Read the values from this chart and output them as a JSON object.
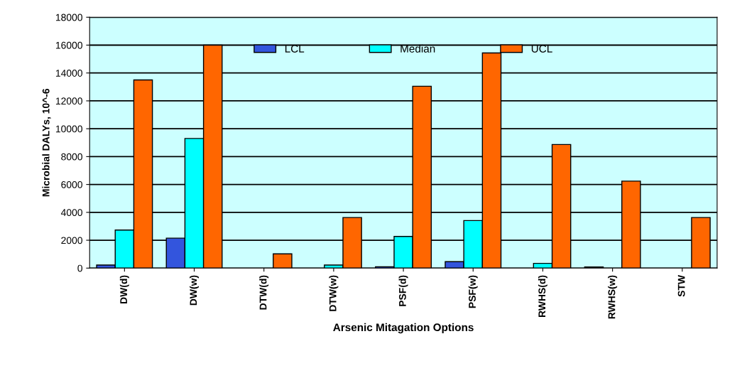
{
  "chart_data": {
    "type": "bar",
    "xlabel": "Arsenic Mitagation Options",
    "ylabel": "Microbial DALYs, 10^-6",
    "categories": [
      "DW(d)",
      "DW(w)",
      "DTW(d)",
      "DTW(w)",
      "PSF(d)",
      "PSF(w)",
      "RWHS(d)",
      "RWHS(w)",
      "STW"
    ],
    "series": [
      {
        "name": "LCL",
        "color": "#3355dd",
        "values": [
          220,
          2150,
          null,
          null,
          100,
          460,
          null,
          80,
          null
        ]
      },
      {
        "name": "Median",
        "color": "#00ffff",
        "values": [
          2730,
          9300,
          null,
          220,
          2270,
          3410,
          340,
          null,
          null
        ]
      },
      {
        "name": "UCL",
        "color": "#ff6600",
        "values": [
          13500,
          16000,
          1020,
          3630,
          13050,
          15440,
          8870,
          6240,
          3630
        ]
      }
    ],
    "ylim": [
      0,
      18000
    ],
    "yticks": [
      0,
      2000,
      4000,
      6000,
      8000,
      10000,
      12000,
      14000,
      16000,
      18000
    ],
    "grid": "y",
    "legend": "top"
  }
}
